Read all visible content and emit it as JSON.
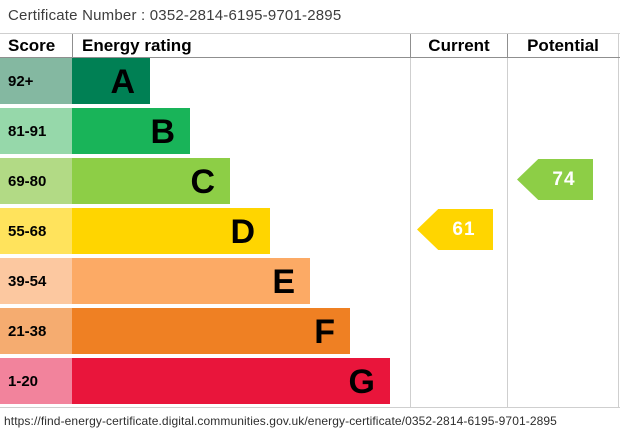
{
  "certificate": {
    "number_line": "Certificate Number : 0352-2814-6195-9701-2895"
  },
  "table": {
    "header": {
      "score": "Score",
      "rating": "Energy rating",
      "current": "Current",
      "potential": "Potential"
    }
  },
  "chart_data": {
    "type": "bar",
    "subtype": "epc-energy-rating-chart",
    "title": "Energy rating",
    "bands": [
      {
        "letter": "A",
        "score": "92+",
        "color": "#008054",
        "tint": "#84b8a1"
      },
      {
        "letter": "B",
        "score": "81-91",
        "color": "#19b459",
        "tint": "#96d8aa"
      },
      {
        "letter": "C",
        "score": "69-80",
        "color": "#8dce46",
        "tint": "#b2da85"
      },
      {
        "letter": "D",
        "score": "55-68",
        "color": "#ffd500",
        "tint": "#ffe35c"
      },
      {
        "letter": "E",
        "score": "39-54",
        "color": "#fcaa65",
        "tint": "#fcc8a0"
      },
      {
        "letter": "F",
        "score": "21-38",
        "color": "#ef8023",
        "tint": "#f5ac70"
      },
      {
        "letter": "G",
        "score": "1-20",
        "color": "#e9153b",
        "tint": "#f2839c"
      }
    ],
    "current": {
      "value": 61,
      "band": "D",
      "color": "#ffd500"
    },
    "potential": {
      "value": 74,
      "band": "C",
      "color": "#8dce46"
    }
  },
  "footer": {
    "url": "https://find-energy-certificate.digital.communities.gov.uk/energy-certificate/0352-2814-6195-9701-2895"
  }
}
